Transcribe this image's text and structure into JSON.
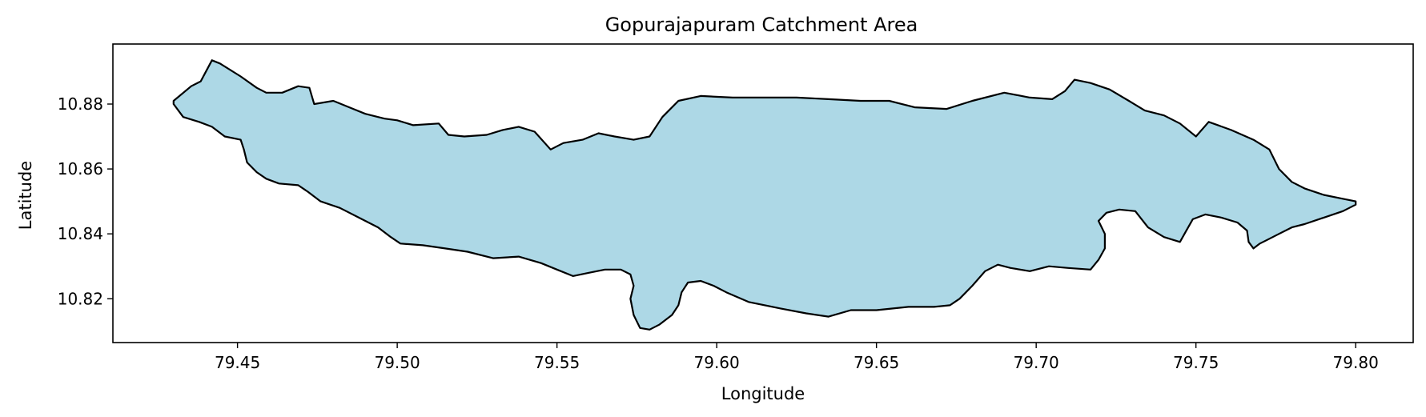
{
  "chart_data": {
    "type": "map",
    "title": "Gopurajapuram Catchment Area",
    "xlabel": "Longitude",
    "ylabel": "Latitude",
    "xlim": [
      79.411,
      79.818
    ],
    "ylim": [
      10.8065,
      10.8985
    ],
    "xticks": [
      79.45,
      79.5,
      79.55,
      79.6,
      79.65,
      79.7,
      79.75,
      79.8
    ],
    "xtick_labels": [
      "79.45",
      "79.50",
      "79.55",
      "79.60",
      "79.65",
      "79.70",
      "79.75",
      "79.80"
    ],
    "yticks": [
      10.82,
      10.84,
      10.86,
      10.88
    ],
    "ytick_labels": [
      "10.82",
      "10.84",
      "10.86",
      "10.88"
    ],
    "grid": false,
    "fill_color": "#add8e6",
    "edge_color": "#000000",
    "boundary": [
      [
        79.43,
        10.881
      ],
      [
        79.4355,
        10.8855
      ],
      [
        79.4385,
        10.887
      ],
      [
        79.442,
        10.8935
      ],
      [
        79.4445,
        10.8925
      ],
      [
        79.451,
        10.8885
      ],
      [
        79.456,
        10.885
      ],
      [
        79.459,
        10.8835
      ],
      [
        79.464,
        10.8835
      ],
      [
        79.469,
        10.8855
      ],
      [
        79.4725,
        10.885
      ],
      [
        79.474,
        10.88
      ],
      [
        79.48,
        10.881
      ],
      [
        79.485,
        10.879
      ],
      [
        79.49,
        10.877
      ],
      [
        79.496,
        10.8755
      ],
      [
        79.5,
        10.875
      ],
      [
        79.505,
        10.8735
      ],
      [
        79.513,
        10.874
      ],
      [
        79.516,
        10.8705
      ],
      [
        79.521,
        10.87
      ],
      [
        79.528,
        10.8705
      ],
      [
        79.533,
        10.872
      ],
      [
        79.538,
        10.873
      ],
      [
        79.543,
        10.8715
      ],
      [
        79.548,
        10.866
      ],
      [
        79.552,
        10.868
      ],
      [
        79.558,
        10.869
      ],
      [
        79.563,
        10.871
      ],
      [
        79.568,
        10.87
      ],
      [
        79.574,
        10.869
      ],
      [
        79.579,
        10.87
      ],
      [
        79.583,
        10.876
      ],
      [
        79.588,
        10.881
      ],
      [
        79.595,
        10.8825
      ],
      [
        79.605,
        10.882
      ],
      [
        79.615,
        10.882
      ],
      [
        79.625,
        10.882
      ],
      [
        79.635,
        10.8815
      ],
      [
        79.645,
        10.881
      ],
      [
        79.654,
        10.881
      ],
      [
        79.662,
        10.879
      ],
      [
        79.672,
        10.8785
      ],
      [
        79.68,
        10.881
      ],
      [
        79.69,
        10.8835
      ],
      [
        79.698,
        10.882
      ],
      [
        79.705,
        10.8815
      ],
      [
        79.709,
        10.884
      ],
      [
        79.712,
        10.8875
      ],
      [
        79.717,
        10.8865
      ],
      [
        79.723,
        10.8845
      ],
      [
        79.729,
        10.881
      ],
      [
        79.734,
        10.878
      ],
      [
        79.74,
        10.8765
      ],
      [
        79.745,
        10.874
      ],
      [
        79.75,
        10.87
      ],
      [
        79.754,
        10.8745
      ],
      [
        79.761,
        10.872
      ],
      [
        79.768,
        10.869
      ],
      [
        79.773,
        10.866
      ],
      [
        79.776,
        10.86
      ],
      [
        79.78,
        10.856
      ],
      [
        79.784,
        10.854
      ],
      [
        79.79,
        10.852
      ],
      [
        79.795,
        10.851
      ],
      [
        79.8,
        10.85
      ],
      [
        79.8,
        10.849
      ],
      [
        79.796,
        10.847
      ],
      [
        79.79,
        10.845
      ],
      [
        79.784,
        10.843
      ],
      [
        79.78,
        10.842
      ],
      [
        79.776,
        10.84
      ],
      [
        79.772,
        10.838
      ],
      [
        79.77,
        10.837
      ],
      [
        79.768,
        10.8355
      ],
      [
        79.7665,
        10.8375
      ],
      [
        79.766,
        10.841
      ],
      [
        79.763,
        10.8435
      ],
      [
        79.758,
        10.845
      ],
      [
        79.753,
        10.846
      ],
      [
        79.749,
        10.8445
      ],
      [
        79.747,
        10.841
      ],
      [
        79.745,
        10.8375
      ],
      [
        79.74,
        10.839
      ],
      [
        79.735,
        10.842
      ],
      [
        79.731,
        10.847
      ],
      [
        79.726,
        10.8475
      ],
      [
        79.722,
        10.8465
      ],
      [
        79.7195,
        10.844
      ],
      [
        79.7215,
        10.84
      ],
      [
        79.7215,
        10.8355
      ],
      [
        79.7195,
        10.832
      ],
      [
        79.717,
        10.829
      ],
      [
        79.71,
        10.8295
      ],
      [
        79.704,
        10.83
      ],
      [
        79.698,
        10.8285
      ],
      [
        79.692,
        10.8295
      ],
      [
        79.688,
        10.8305
      ],
      [
        79.684,
        10.8285
      ],
      [
        79.68,
        10.824
      ],
      [
        79.676,
        10.82
      ],
      [
        79.673,
        10.818
      ],
      [
        79.668,
        10.8175
      ],
      [
        79.66,
        10.8175
      ],
      [
        79.65,
        10.8165
      ],
      [
        79.642,
        10.8165
      ],
      [
        79.635,
        10.8145
      ],
      [
        79.628,
        10.8155
      ],
      [
        79.62,
        10.817
      ],
      [
        79.61,
        10.819
      ],
      [
        79.603,
        10.822
      ],
      [
        79.599,
        10.824
      ],
      [
        79.595,
        10.8255
      ],
      [
        79.591,
        10.825
      ],
      [
        79.589,
        10.822
      ],
      [
        79.588,
        10.818
      ],
      [
        79.586,
        10.815
      ],
      [
        79.582,
        10.812
      ],
      [
        79.579,
        10.8105
      ],
      [
        79.576,
        10.811
      ],
      [
        79.574,
        10.815
      ],
      [
        79.573,
        10.82
      ],
      [
        79.574,
        10.824
      ],
      [
        79.573,
        10.8275
      ],
      [
        79.57,
        10.829
      ],
      [
        79.565,
        10.829
      ],
      [
        79.56,
        10.828
      ],
      [
        79.555,
        10.827
      ],
      [
        79.55,
        10.829
      ],
      [
        79.545,
        10.831
      ],
      [
        79.538,
        10.833
      ],
      [
        79.53,
        10.8325
      ],
      [
        79.522,
        10.8345
      ],
      [
        79.515,
        10.8355
      ],
      [
        79.508,
        10.8365
      ],
      [
        79.501,
        10.837
      ],
      [
        79.498,
        10.839
      ],
      [
        79.494,
        10.842
      ],
      [
        79.488,
        10.845
      ],
      [
        79.482,
        10.848
      ],
      [
        79.476,
        10.85
      ],
      [
        79.472,
        10.853
      ],
      [
        79.469,
        10.855
      ],
      [
        79.463,
        10.8555
      ],
      [
        79.459,
        10.857
      ],
      [
        79.456,
        10.859
      ],
      [
        79.453,
        10.862
      ],
      [
        79.452,
        10.866
      ],
      [
        79.451,
        10.869
      ],
      [
        79.446,
        10.87
      ],
      [
        79.442,
        10.873
      ],
      [
        79.438,
        10.8745
      ],
      [
        79.433,
        10.876
      ],
      [
        79.43,
        10.88
      ]
    ]
  }
}
